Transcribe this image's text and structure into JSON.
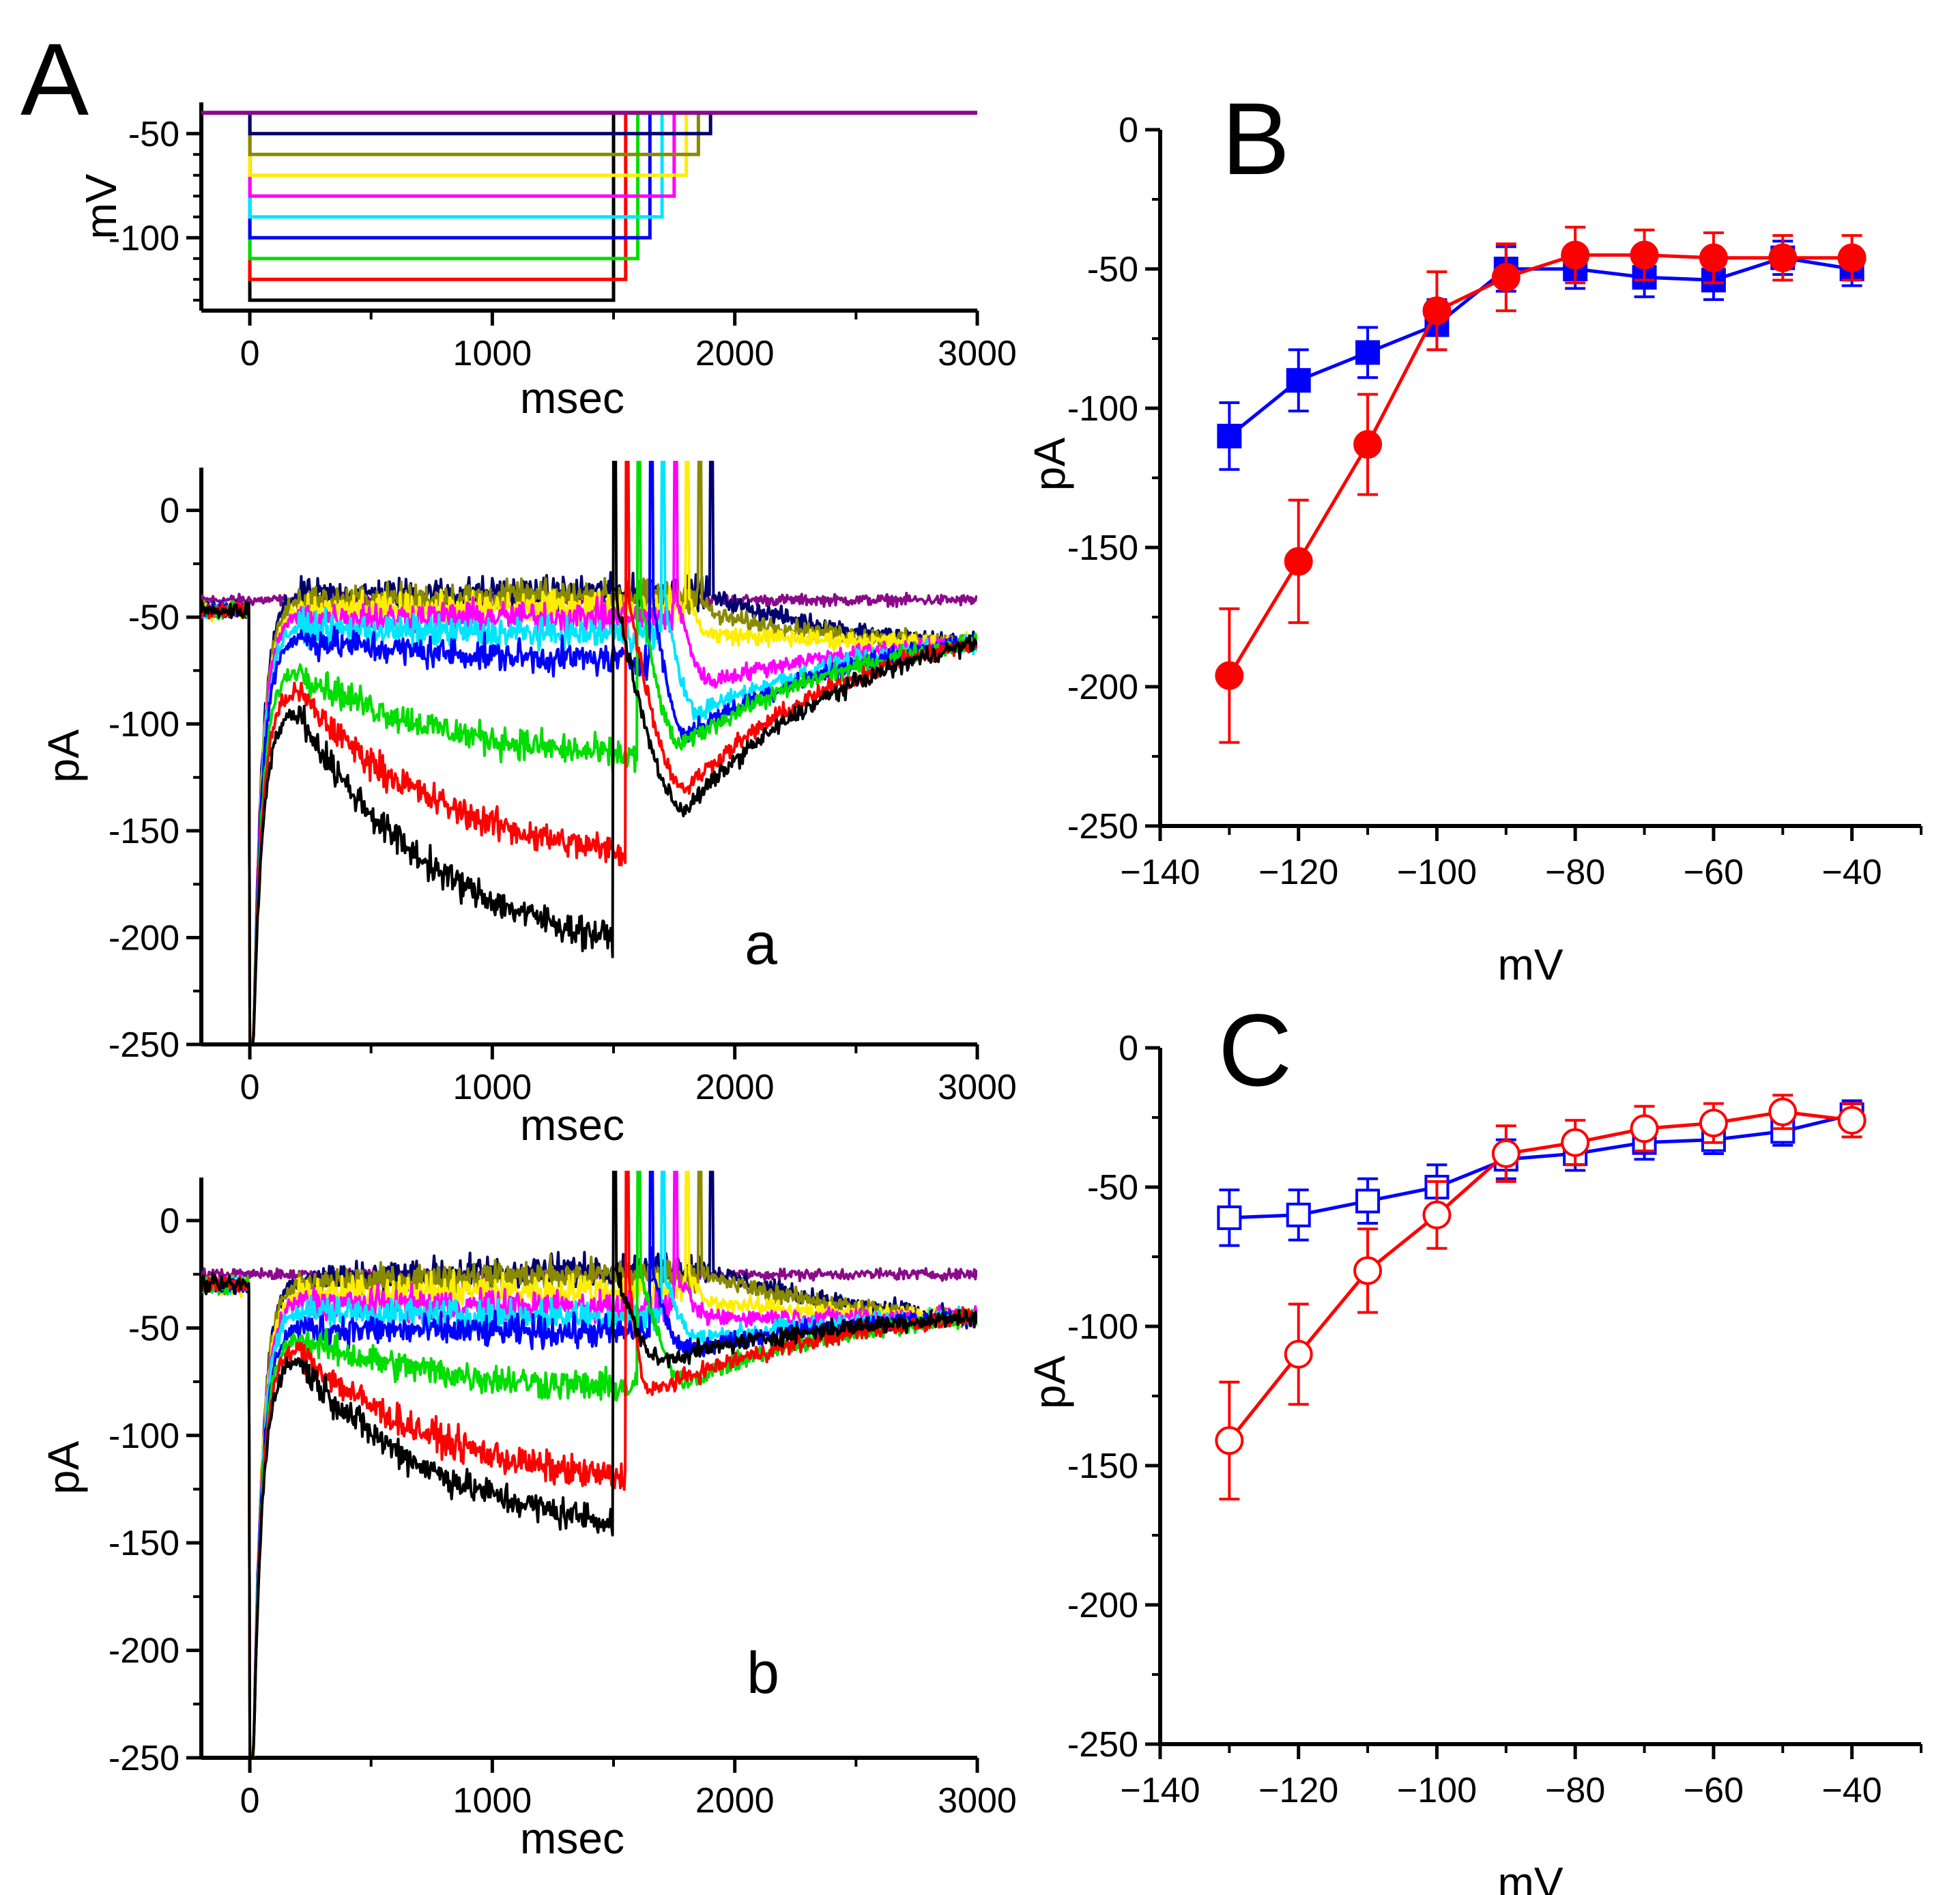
{
  "figure": {
    "colors": {
      "black": "#000000",
      "red": "#ff0000",
      "green": "#00dd00",
      "blue": "#0000ff",
      "cyan": "#00e5ff",
      "magenta": "#ff00ff",
      "yellow": "#ffee00",
      "olive": "#8a8a00",
      "navy": "#00006e",
      "purple": "#8a0a8a"
    },
    "panel_letters": {
      "A": "A",
      "B": "B",
      "C": "C"
    }
  },
  "chart_data": [
    {
      "id": "A-protocol",
      "type": "line",
      "title": "",
      "xlabel": "msec",
      "ylabel": "mV",
      "xlim": [
        -200,
        3000
      ],
      "ylim": [
        -135,
        -35
      ],
      "xticks": [
        "0",
        "1000",
        "2000",
        "3000"
      ],
      "yticks": [
        "-50",
        "-100"
      ],
      "holding_mV": -40,
      "step_start_ms": 0,
      "step_mV": [
        -130,
        -120,
        -110,
        -100,
        -90,
        -80,
        -70,
        -60,
        -50
      ],
      "step_end_ms": [
        1500,
        1550,
        1600,
        1650,
        1700,
        1750,
        1800,
        1850,
        1900
      ],
      "series_colors": [
        "black",
        "red",
        "green",
        "blue",
        "cyan",
        "magenta",
        "yellow",
        "olive",
        "navy"
      ],
      "holding_trace_color": "purple"
    },
    {
      "id": "A-a",
      "type": "line",
      "sublabel": "a",
      "xlabel": "msec",
      "ylabel": "pA",
      "xlim": [
        -200,
        3000
      ],
      "ylim": [
        -250,
        20
      ],
      "xticks": [
        "0",
        "1000",
        "2000",
        "3000"
      ],
      "yticks": [
        "0",
        "-50",
        "-100",
        "-150",
        "-200",
        "-250"
      ],
      "baseline_pA": -42,
      "traces": [
        {
          "color": "black",
          "step_end": 1500,
          "peak": -95,
          "late": -200,
          "tail": -140,
          "tail_t": 1800
        },
        {
          "color": "red",
          "step_end": 1550,
          "peak": -85,
          "late": -160,
          "tail": -130,
          "tail_t": 1800
        },
        {
          "color": "green",
          "step_end": 1600,
          "peak": -75,
          "late": -115,
          "tail": -110,
          "tail_t": 1780
        },
        {
          "color": "blue",
          "step_end": 1650,
          "peak": -60,
          "late": -70,
          "tail": -105,
          "tail_t": 1800
        },
        {
          "color": "cyan",
          "step_end": 1700,
          "peak": -55,
          "late": -58,
          "tail": -95,
          "tail_t": 1850
        },
        {
          "color": "magenta",
          "step_end": 1750,
          "peak": -50,
          "late": -50,
          "tail": -80,
          "tail_t": 1900
        },
        {
          "color": "yellow",
          "step_end": 1800,
          "peak": -48,
          "late": -45,
          "tail": -58,
          "tail_t": 1900
        },
        {
          "color": "olive",
          "step_end": 1850,
          "peak": -43,
          "late": -40,
          "tail": -50,
          "tail_t": 1950
        },
        {
          "color": "navy",
          "step_end": 1900,
          "peak": -40,
          "late": -38,
          "tail": -42,
          "tail_t": 1950
        },
        {
          "color": "purple",
          "step_end": 0,
          "peak": -42,
          "late": -42,
          "tail": -42,
          "tail_t": 0
        }
      ]
    },
    {
      "id": "A-b",
      "type": "line",
      "sublabel": "b",
      "xlabel": "msec",
      "ylabel": "pA",
      "xlim": [
        -200,
        3000
      ],
      "ylim": [
        -250,
        20
      ],
      "xticks": [
        "0",
        "1000",
        "2000",
        "3000"
      ],
      "yticks": [
        "0",
        "-50",
        "-100",
        "-150",
        "-200",
        "-250"
      ],
      "baseline_pA": -25,
      "traces": [
        {
          "color": "black",
          "step_end": 1500,
          "peak": -65,
          "late": -140,
          "tail": -65,
          "tail_t": 1700
        },
        {
          "color": "red",
          "step_end": 1550,
          "peak": -60,
          "late": -120,
          "tail": -80,
          "tail_t": 1650
        },
        {
          "color": "green",
          "step_end": 1600,
          "peak": -55,
          "late": -78,
          "tail": -75,
          "tail_t": 1800
        },
        {
          "color": "blue",
          "step_end": 1650,
          "peak": -50,
          "late": -52,
          "tail": -60,
          "tail_t": 1800
        },
        {
          "color": "cyan",
          "step_end": 1700,
          "peak": -42,
          "late": -45,
          "tail": -55,
          "tail_t": 1850
        },
        {
          "color": "magenta",
          "step_end": 1750,
          "peak": -38,
          "late": -40,
          "tail": -45,
          "tail_t": 1900
        },
        {
          "color": "yellow",
          "step_end": 1800,
          "peak": -35,
          "late": -32,
          "tail": -38,
          "tail_t": 1900
        },
        {
          "color": "olive",
          "step_end": 1850,
          "peak": -30,
          "late": -25,
          "tail": -28,
          "tail_t": 1950
        },
        {
          "color": "navy",
          "step_end": 1900,
          "peak": -28,
          "late": -22,
          "tail": -25,
          "tail_t": 1950
        },
        {
          "color": "purple",
          "step_end": 0,
          "peak": -25,
          "late": -25,
          "tail": -25,
          "tail_t": 0
        }
      ]
    },
    {
      "id": "B",
      "type": "scatter",
      "xlabel": "mV",
      "ylabel": "pA",
      "xlim": [
        -140,
        -30
      ],
      "ylim": [
        -250,
        0
      ],
      "xticks": [
        -140,
        -120,
        -100,
        -80,
        -60,
        -40
      ],
      "yticks": [
        0,
        -50,
        -100,
        -150,
        -200,
        -250
      ],
      "x": [
        -130,
        -120,
        -110,
        -100,
        -90,
        -80,
        -70,
        -60,
        -50,
        -40
      ],
      "series": [
        {
          "name": "squares (blue)",
          "marker": "square",
          "filled": true,
          "color": "blue",
          "values": [
            -110,
            -90,
            -80,
            -70,
            -50,
            -50,
            -53,
            -54,
            -46,
            -50
          ],
          "errors": [
            12,
            11,
            9,
            9,
            8,
            7,
            7,
            7,
            6,
            6
          ]
        },
        {
          "name": "circles (red)",
          "marker": "circle",
          "filled": true,
          "color": "red",
          "values": [
            -196,
            -155,
            -113,
            -65,
            -53,
            -45,
            -45,
            -46,
            -46,
            -46
          ],
          "errors": [
            24,
            22,
            18,
            14,
            12,
            10,
            9,
            9,
            8,
            8
          ]
        }
      ]
    },
    {
      "id": "C",
      "type": "scatter",
      "xlabel": "mV",
      "ylabel": "pA",
      "xlim": [
        -140,
        -30
      ],
      "ylim": [
        -250,
        0
      ],
      "xticks": [
        -140,
        -120,
        -100,
        -80,
        -60,
        -40
      ],
      "yticks": [
        0,
        -50,
        -100,
        -150,
        -200,
        -250
      ],
      "x": [
        -130,
        -120,
        -110,
        -100,
        -90,
        -80,
        -70,
        -60,
        -50,
        -40
      ],
      "series": [
        {
          "name": "open squares (blue)",
          "marker": "square",
          "filled": false,
          "color": "blue",
          "values": [
            -61,
            -60,
            -55,
            -50,
            -40,
            -38,
            -34,
            -33,
            -30,
            -24
          ],
          "errors": [
            10,
            9,
            8,
            8,
            7,
            6,
            6,
            5,
            5,
            5
          ]
        },
        {
          "name": "open circles (red)",
          "marker": "circle",
          "filled": false,
          "color": "red",
          "values": [
            -141,
            -110,
            -80,
            -60,
            -38,
            -34,
            -29,
            -27,
            -23,
            -26
          ],
          "errors": [
            21,
            18,
            15,
            12,
            10,
            8,
            8,
            7,
            6,
            6
          ]
        }
      ]
    }
  ]
}
